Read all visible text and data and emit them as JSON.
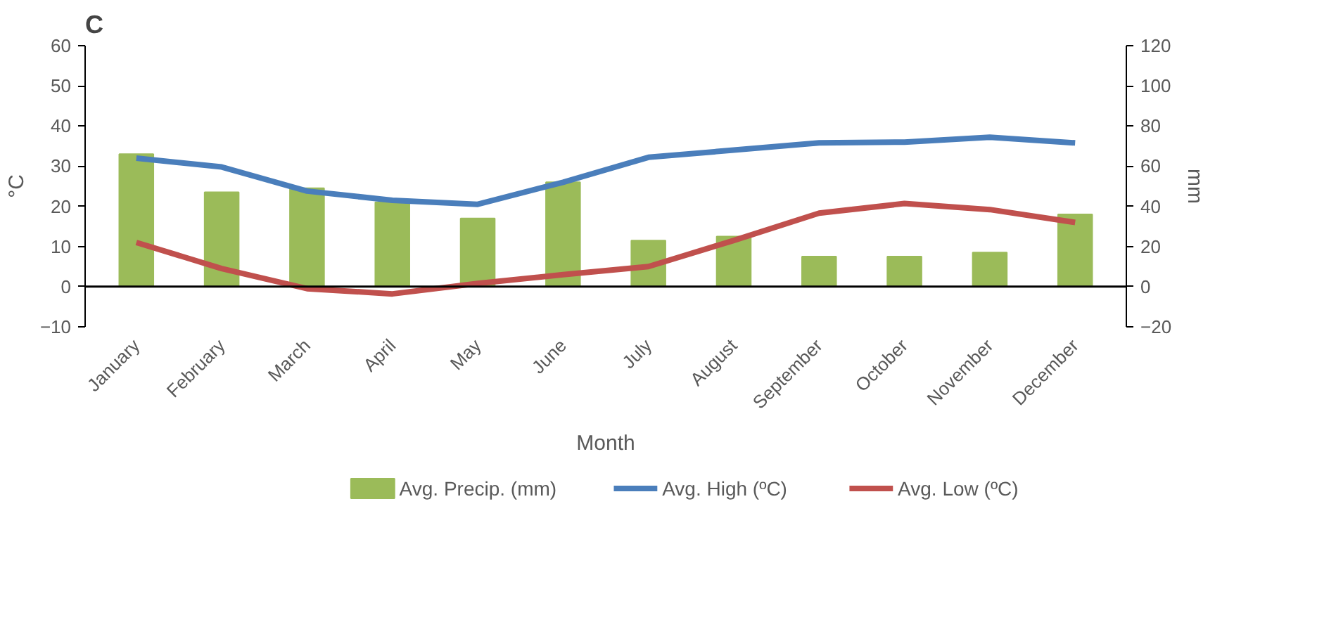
{
  "chart_data": {
    "type": "line",
    "title": "C",
    "xlabel": "Month",
    "ylabel": "°C",
    "y2label": "mm",
    "categories": [
      "January",
      "February",
      "March",
      "April",
      "May",
      "June",
      "July",
      "August",
      "September",
      "October",
      "November",
      "December"
    ],
    "series": [
      {
        "name": "Avg. Precip. (mm)",
        "type": "bar",
        "axis": "y2",
        "color": "#9bbb59",
        "values": [
          66,
          47,
          49,
          42,
          34,
          52,
          23,
          25,
          15,
          15,
          17,
          36
        ]
      },
      {
        "name": "Avg. High (ºC)",
        "color": "#4a7ebb",
        "values": [
          32,
          29.8,
          23.8,
          21.5,
          20.5,
          26,
          32.2,
          34,
          35.8,
          36,
          37.2,
          35.8
        ]
      },
      {
        "name": "Avg. Low (ºC)",
        "color": "#c0504d",
        "values": [
          11,
          4.5,
          -0.5,
          -1.8,
          0.8,
          3,
          5,
          11.5,
          18.3,
          20.7,
          19.2,
          16
        ]
      }
    ],
    "ylim": [
      -10,
      60
    ],
    "yticks": [
      -10,
      0,
      10,
      20,
      30,
      40,
      50,
      60
    ],
    "y2lim": [
      -20,
      120
    ],
    "y2ticks": [
      -20,
      0,
      20,
      40,
      60,
      80,
      100,
      120
    ],
    "ref_lines": [
      {
        "axis": "y",
        "value": 0,
        "color": "#000000"
      }
    ],
    "grid": false,
    "legend": "bottom"
  }
}
